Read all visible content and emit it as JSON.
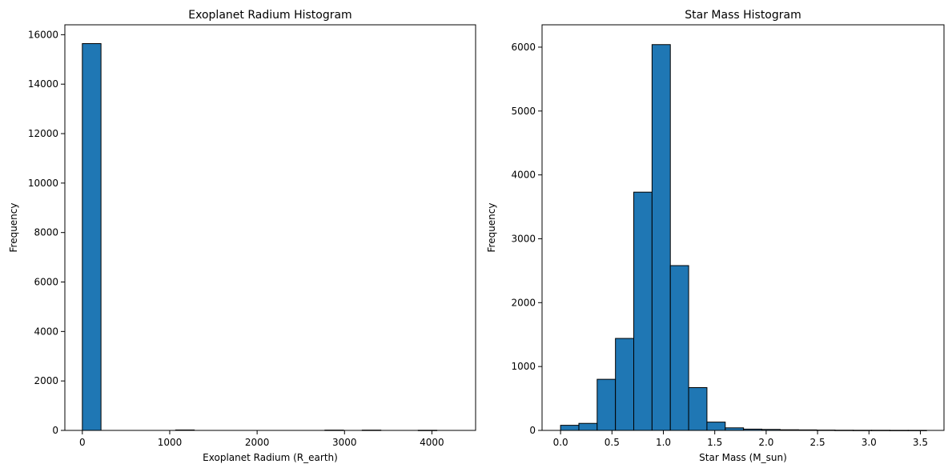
{
  "chart_data": [
    {
      "type": "bar",
      "title": "Exoplanet Radium Histogram",
      "xlabel": "Exoplanet Radium (R_earth)",
      "ylabel": "Frequency",
      "xlim": [
        -200,
        4500
      ],
      "ylim": [
        0,
        16400
      ],
      "xticks": [
        0,
        1000,
        2000,
        3000,
        4000
      ],
      "yticks": [
        0,
        2000,
        4000,
        6000,
        8000,
        10000,
        12000,
        14000,
        16000
      ],
      "bin_edges": [
        0,
        213.5,
        427,
        640.5,
        854,
        1067.5,
        1281,
        1494.5,
        1708,
        1921.5,
        2135,
        2348.5,
        2562,
        2775.5,
        2989,
        3202.5,
        3416,
        3629.5,
        3843,
        4056.5,
        4270
      ],
      "values": [
        15640,
        0,
        0,
        0,
        0,
        18,
        0,
        0,
        0,
        0,
        0,
        0,
        0,
        12,
        0,
        12,
        0,
        0,
        6,
        0
      ],
      "bar_color": "#1f77b4",
      "edge_color": "#000000",
      "grid": false,
      "legend": false
    },
    {
      "type": "bar",
      "title": "Star Mass Histogram",
      "xlabel": "Star Mass (M_sun)",
      "ylabel": "Frequency",
      "xlim": [
        -0.18,
        3.73
      ],
      "ylim": [
        0,
        6350
      ],
      "xticks": [
        "0.0",
        "0.5",
        "1.0",
        "1.5",
        "2.0",
        "2.5",
        "3.0",
        "3.5"
      ],
      "yticks": [
        0,
        1000,
        2000,
        3000,
        4000,
        5000,
        6000
      ],
      "bin_edges": [
        0,
        0.178,
        0.356,
        0.534,
        0.712,
        0.89,
        1.068,
        1.246,
        1.424,
        1.602,
        1.78,
        1.958,
        2.136,
        2.314,
        2.492,
        2.67,
        2.848,
        3.026,
        3.204,
        3.382,
        3.56
      ],
      "values": [
        80,
        110,
        800,
        1440,
        3730,
        6040,
        2580,
        670,
        130,
        40,
        20,
        15,
        10,
        8,
        5,
        3,
        2,
        2,
        1,
        1
      ],
      "bar_color": "#1f77b4",
      "edge_color": "#000000",
      "grid": false,
      "legend": false
    }
  ]
}
